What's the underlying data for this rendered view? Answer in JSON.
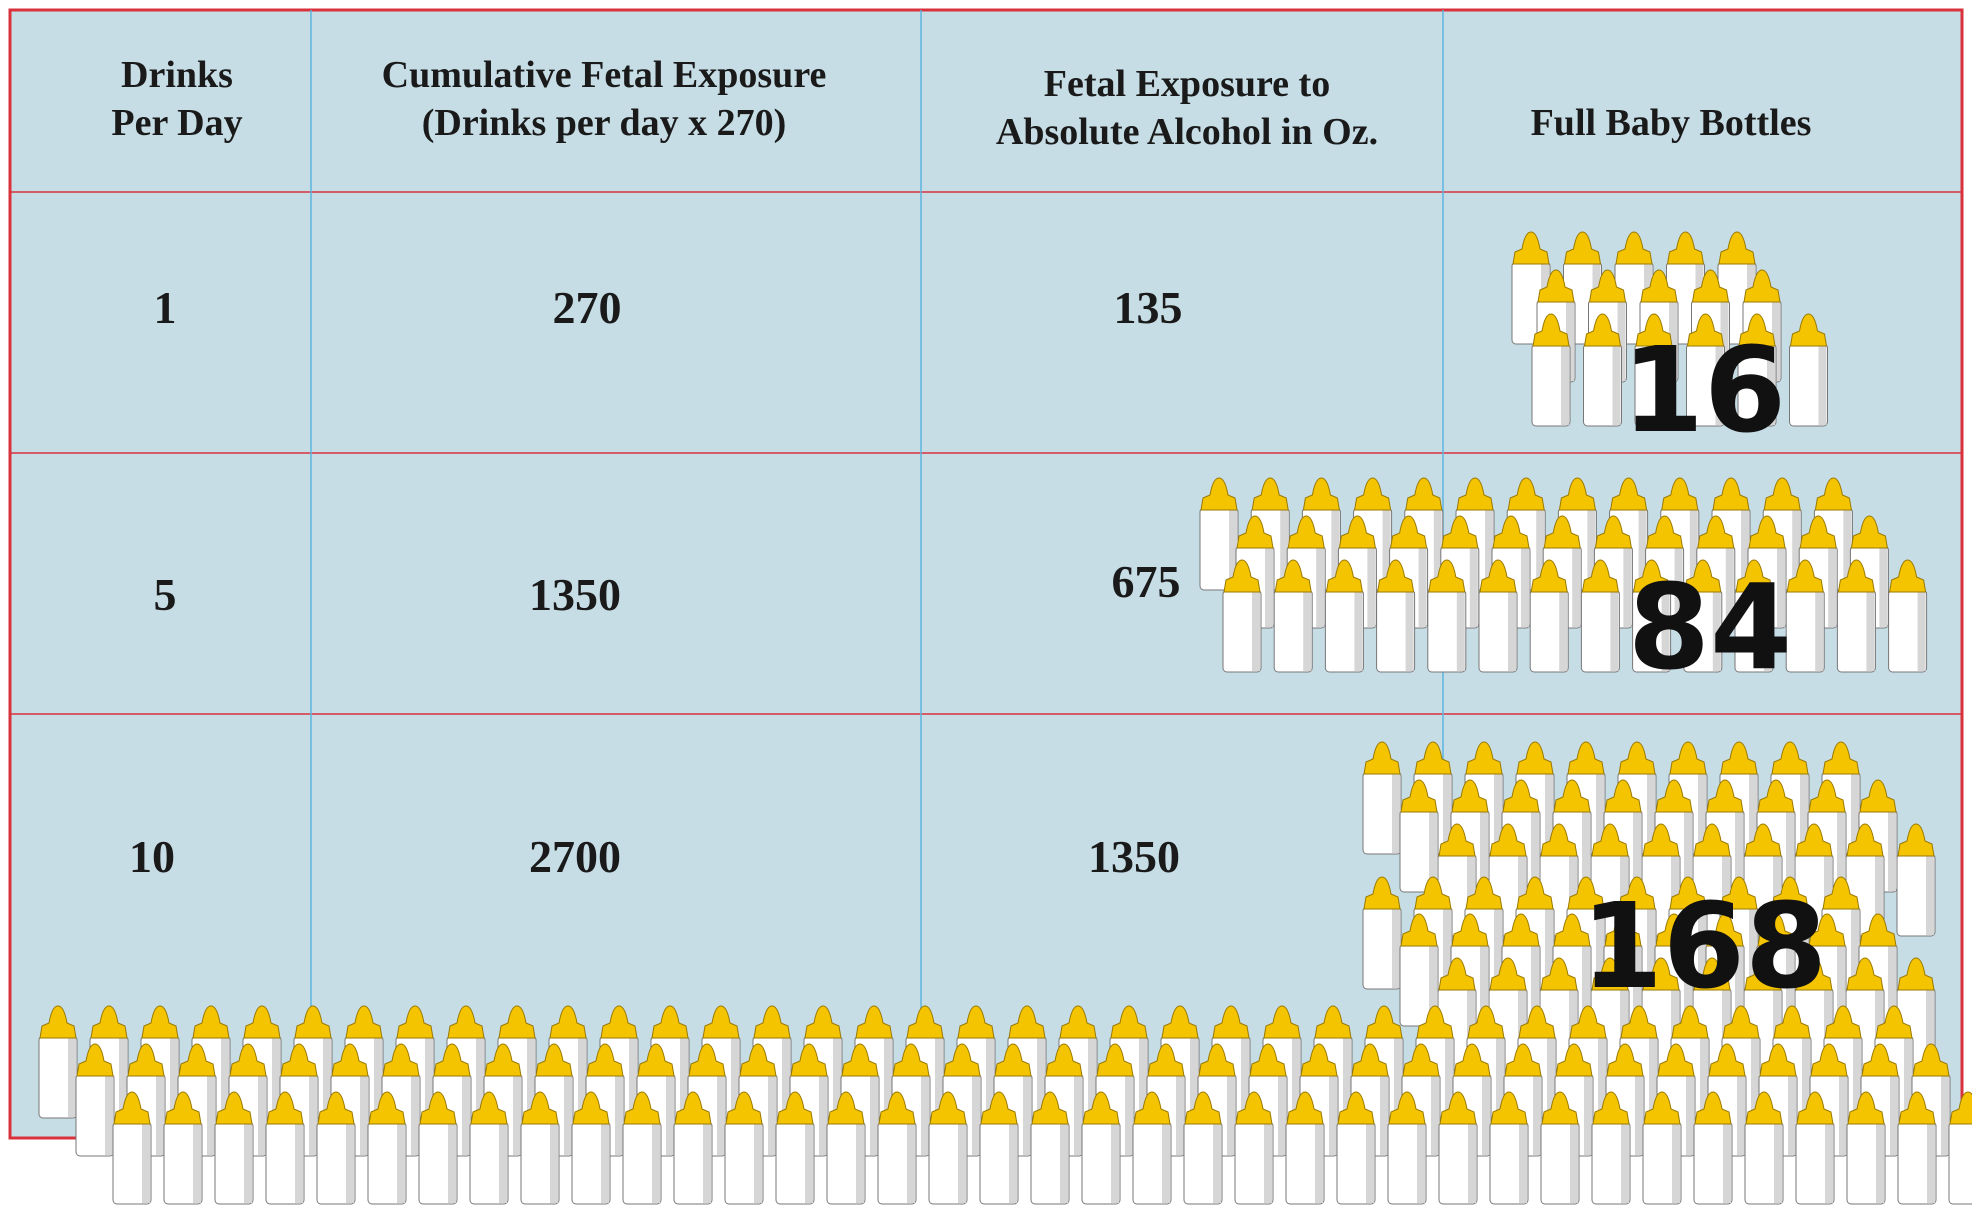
{
  "table": {
    "header": [
      [
        "Drinks",
        "Per Day"
      ],
      [
        "Cumulative Fetal Exposure",
        "(Drinks per day x 270)"
      ],
      [
        "Fetal Exposure to",
        "Absolute Alcohol in Oz."
      ],
      [
        "Full Baby Bottles"
      ]
    ],
    "rows": [
      [
        1,
        270,
        135,
        16
      ],
      [
        5,
        1350,
        675,
        84
      ],
      [
        10,
        2700,
        1350,
        168
      ]
    ]
  }
}
